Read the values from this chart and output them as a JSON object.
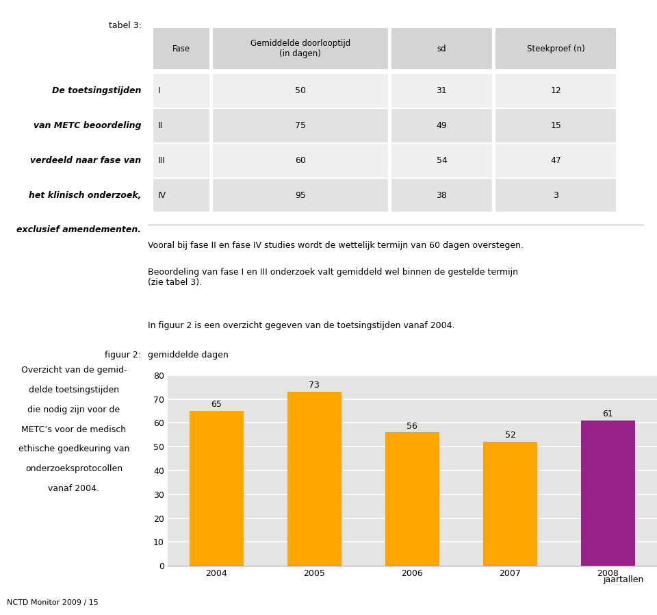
{
  "page_bg": "#ffffff",
  "table": {
    "title": "tabel 3:",
    "left_text_lines": [
      "De toetsingstijden",
      "van METC beoordeling",
      "verdeeld naar fase van",
      "het klinisch onderzoek,",
      "exclusief amendementen."
    ],
    "headers": [
      "Fase",
      "Gemiddelde doorlooptijd\n(in dagen)",
      "sd",
      "Steekproef (n)"
    ],
    "rows": [
      [
        "I",
        "50",
        "31",
        "12"
      ],
      [
        "II",
        "75",
        "49",
        "15"
      ],
      [
        "III",
        "60",
        "54",
        "47"
      ],
      [
        "IV",
        "95",
        "38",
        "3"
      ]
    ],
    "header_bg": "#d4d4d4",
    "row_bg_odd": "#efefef",
    "row_bg_even": "#e2e2e2"
  },
  "para1": "Vooral bij fase II en fase IV studies wordt de wettelijk termijn van 60 dagen overstegen.",
  "para2": "Beoordeling van fase I en III onderzoek valt gemiddeld wel binnen de gestelde termijn\n(zie tabel 3).",
  "para3": "In figuur 2 is een overzicht gegeven van de toetsingstijden vanaf 2004.",
  "figuur_label": "figuur 2:",
  "chart_ylabel": "gemiddelde dagen",
  "figuur_left_text_lines": [
    "Overzicht van de gemid-",
    "delde toetsingstijden",
    "die nodig zijn voor de",
    "METC’s voor de medisch",
    "ethische goedkeuring van",
    "onderzoeksprotocollen",
    "vanaf 2004."
  ],
  "chart": {
    "xlabel": "jaartallen",
    "years": [
      "2004",
      "2005",
      "2006",
      "2007",
      "2008"
    ],
    "values": [
      65,
      73,
      56,
      52,
      61
    ],
    "bar_colors": [
      "#FFA500",
      "#FFA500",
      "#FFA500",
      "#FFA500",
      "#992288"
    ],
    "ylim": [
      0,
      80
    ],
    "yticks": [
      0,
      10,
      20,
      30,
      40,
      50,
      60,
      70,
      80
    ],
    "bg_color": "#e4e4e4",
    "grid_color": "#ffffff",
    "bar_width": 0.55
  },
  "footer_text": "NCTD Monitor 2009 / 15"
}
